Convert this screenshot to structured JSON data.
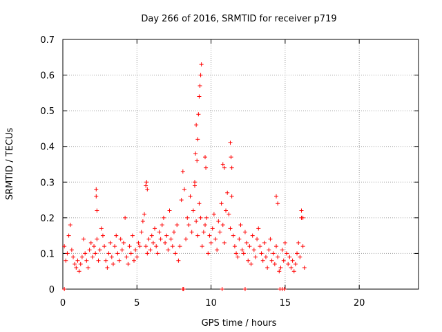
{
  "chart_data": {
    "type": "scatter",
    "title": "Day 266 of 2016, SRMTID for receiver p719",
    "xlabel": "GPS time / hours",
    "ylabel": "SRMTID / TECUs",
    "xlim": [
      0,
      24
    ],
    "ylim": [
      0,
      0.7
    ],
    "xticks": [
      0,
      5,
      10,
      15,
      20
    ],
    "yticks": [
      0,
      0.1,
      0.2,
      0.3,
      0.4,
      0.5,
      0.6,
      0.7
    ],
    "xtick_labels": [
      "0",
      "5",
      "10",
      "15",
      "20"
    ],
    "ytick_labels": [
      "0",
      "0.1",
      "0.2",
      "0.3",
      "0.4",
      "0.5",
      "0.6",
      "0.7"
    ],
    "grid": true,
    "marker": "+",
    "color": "#ff0000",
    "series": [
      {
        "name": "p719",
        "x": [
          0.1,
          0.2,
          0.3,
          0.4,
          0.5,
          0.6,
          0.7,
          0.8,
          0.9,
          1.0,
          1.1,
          1.2,
          1.3,
          1.4,
          1.5,
          1.6,
          1.7,
          1.8,
          1.9,
          2.0,
          2.1,
          2.2,
          2.3,
          2.4,
          2.5,
          2.6,
          2.7,
          2.8,
          2.9,
          3.0,
          3.1,
          3.2,
          3.3,
          3.4,
          3.5,
          3.6,
          3.7,
          3.8,
          3.9,
          4.0,
          4.1,
          4.2,
          4.3,
          4.4,
          4.5,
          4.6,
          4.7,
          4.8,
          4.9,
          5.0,
          5.1,
          5.2,
          5.3,
          5.4,
          5.5,
          5.6,
          5.7,
          5.8,
          5.9,
          6.0,
          6.1,
          6.2,
          6.3,
          6.4,
          6.5,
          6.6,
          6.7,
          6.8,
          6.9,
          7.0,
          7.1,
          7.2,
          7.3,
          7.4,
          7.5,
          7.6,
          7.7,
          7.8,
          7.9,
          8.0,
          8.1,
          8.2,
          8.3,
          8.4,
          8.5,
          8.6,
          8.7,
          8.8,
          8.9,
          9.0,
          9.1,
          9.2,
          9.3,
          9.4,
          9.5,
          9.6,
          9.7,
          9.8,
          9.9,
          10.0,
          10.1,
          10.2,
          10.3,
          10.4,
          10.5,
          10.6,
          10.7,
          10.8,
          10.9,
          11.0,
          11.1,
          11.2,
          11.3,
          11.4,
          11.5,
          11.6,
          11.7,
          11.8,
          11.9,
          12.0,
          12.1,
          12.2,
          12.3,
          12.4,
          12.5,
          12.6,
          12.7,
          12.8,
          12.9,
          13.0,
          13.1,
          13.2,
          13.3,
          13.4,
          13.5,
          13.6,
          13.7,
          13.8,
          13.9,
          14.0,
          14.1,
          14.2,
          14.3,
          14.4,
          14.5,
          14.6,
          14.7,
          14.8,
          14.9,
          15.0,
          15.1,
          15.2,
          15.3,
          15.4,
          15.5,
          15.6,
          15.7,
          15.8,
          15.9,
          16.0,
          16.1,
          16.2,
          16.3,
          2.25,
          2.25,
          2.3,
          5.6,
          5.65,
          5.7,
          9.05,
          9.1,
          9.15,
          9.2,
          9.25,
          9.3,
          9.35,
          8.9,
          8.95,
          9.0,
          11.3,
          11.35,
          11.4,
          10.8,
          10.9,
          14.4,
          14.5,
          16.1,
          16.2,
          9.6,
          9.65,
          0.1,
          8.1,
          8.15,
          10.75,
          12.3,
          14.65,
          14.8,
          14.95
        ],
        "y": [
          0.12,
          0.08,
          0.1,
          0.15,
          0.18,
          0.11,
          0.09,
          0.07,
          0.06,
          0.08,
          0.05,
          0.07,
          0.09,
          0.14,
          0.1,
          0.08,
          0.06,
          0.11,
          0.13,
          0.09,
          0.12,
          0.1,
          0.14,
          0.08,
          0.11,
          0.17,
          0.15,
          0.12,
          0.08,
          0.06,
          0.1,
          0.13,
          0.09,
          0.07,
          0.12,
          0.15,
          0.1,
          0.08,
          0.14,
          0.11,
          0.13,
          0.2,
          0.09,
          0.07,
          0.12,
          0.1,
          0.15,
          0.08,
          0.11,
          0.09,
          0.13,
          0.12,
          0.16,
          0.19,
          0.21,
          0.12,
          0.1,
          0.14,
          0.11,
          0.15,
          0.13,
          0.17,
          0.12,
          0.1,
          0.16,
          0.14,
          0.18,
          0.2,
          0.13,
          0.15,
          0.11,
          0.22,
          0.14,
          0.12,
          0.16,
          0.1,
          0.18,
          0.08,
          0.12,
          0.25,
          0.33,
          0.28,
          0.14,
          0.2,
          0.18,
          0.26,
          0.16,
          0.22,
          0.3,
          0.19,
          0.15,
          0.24,
          0.2,
          0.12,
          0.16,
          0.18,
          0.2,
          0.1,
          0.15,
          0.13,
          0.17,
          0.21,
          0.14,
          0.11,
          0.19,
          0.16,
          0.24,
          0.18,
          0.13,
          0.22,
          0.27,
          0.21,
          0.17,
          0.26,
          0.15,
          0.12,
          0.1,
          0.09,
          0.14,
          0.18,
          0.11,
          0.1,
          0.16,
          0.13,
          0.08,
          0.12,
          0.07,
          0.15,
          0.11,
          0.09,
          0.14,
          0.17,
          0.12,
          0.1,
          0.08,
          0.13,
          0.09,
          0.06,
          0.11,
          0.14,
          0.08,
          0.1,
          0.07,
          0.12,
          0.09,
          0.05,
          0.06,
          0.11,
          0.08,
          0.13,
          0.1,
          0.07,
          0.09,
          0.06,
          0.08,
          0.05,
          0.07,
          0.1,
          0.13,
          0.09,
          0.2,
          0.12,
          0.06,
          0.26,
          0.28,
          0.22,
          0.29,
          0.3,
          0.28,
          0.36,
          0.42,
          0.49,
          0.54,
          0.57,
          0.6,
          0.63,
          0.29,
          0.38,
          0.46,
          0.41,
          0.37,
          0.34,
          0.35,
          0.34,
          0.26,
          0.24,
          0.22,
          0.2,
          0.37,
          0.34,
          0.0,
          0.0,
          0.0,
          0.0,
          0.0,
          0.0,
          0.0,
          0.0
        ]
      }
    ]
  }
}
